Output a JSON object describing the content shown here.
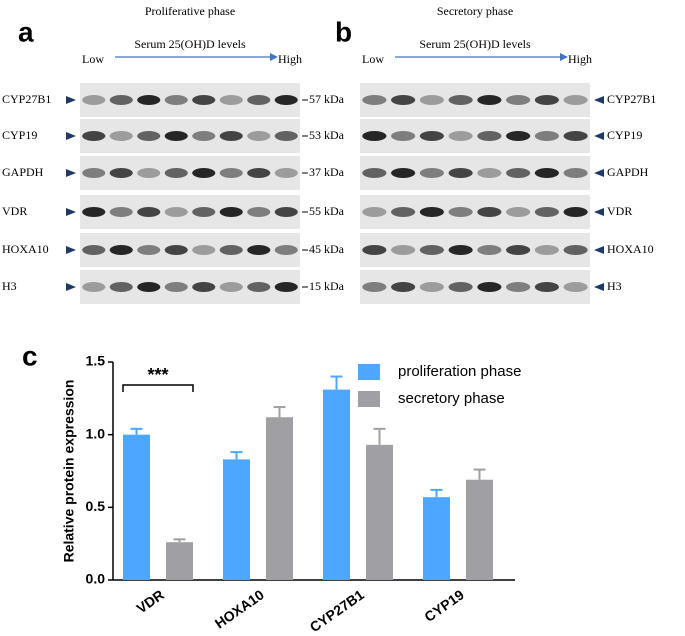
{
  "blots": [
    {
      "label": "a",
      "title": "Proliferative phase",
      "low": "Low",
      "axis_label": "Serum 25(OH)D levels",
      "high": "High",
      "rows": [
        {
          "name": "CYP27B1",
          "size": "57 kDa"
        },
        {
          "name": "CYP19",
          "size": "53 kDa"
        },
        {
          "name": "GAPDH",
          "size": "37 kDa"
        },
        {
          "name": "VDR",
          "size": "55 kDa"
        },
        {
          "name": "HOXA10",
          "size": "45 kDa"
        },
        {
          "name": "H3",
          "size": "15 kDa"
        }
      ]
    },
    {
      "label": "b",
      "title": "Secretory phase",
      "low": "Low",
      "axis_label": "Serum 25(OH)D levels",
      "high": "High",
      "rows": [
        {
          "name": "CYP27B1"
        },
        {
          "name": "CYP19"
        },
        {
          "name": "GAPDH"
        },
        {
          "name": "VDR"
        },
        {
          "name": "HOXA10"
        },
        {
          "name": "H3"
        }
      ]
    }
  ],
  "chart_data": {
    "type": "bar",
    "panel_label": "c",
    "y_label": "Relative protein expression",
    "categories": [
      "VDR",
      "HOXA10",
      "CYP27B1",
      "CYP19"
    ],
    "series": [
      {
        "name": "proliferation phase",
        "color": "#4da6ff",
        "values": [
          1.0,
          0.83,
          1.31,
          0.57
        ],
        "errors": [
          0.04,
          0.05,
          0.09,
          0.05
        ]
      },
      {
        "name": "secretory phase",
        "color": "#a0a0a4",
        "values": [
          0.26,
          1.12,
          0.93,
          0.69
        ],
        "errors": [
          0.02,
          0.07,
          0.11,
          0.07
        ]
      }
    ],
    "annotation": "***",
    "ylim": [
      0,
      1.5
    ],
    "yticks": [
      {
        "value": 0,
        "label": "0.0"
      },
      0.5,
      {
        "value": 1,
        "label": "1.0"
      },
      1.5
    ]
  }
}
